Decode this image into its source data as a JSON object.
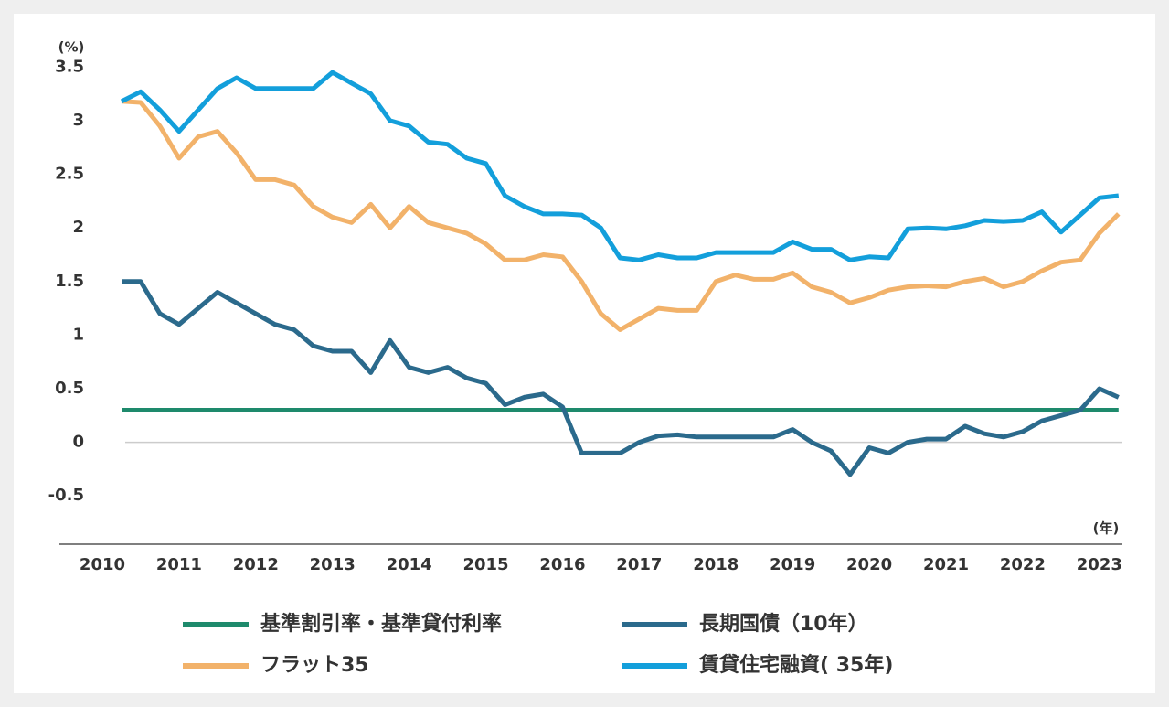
{
  "chart_data": {
    "type": "line",
    "y_label": "(%)",
    "x_label": "(年)",
    "xlim": [
      2009.44,
      2023.3
    ],
    "xticks": [
      2010,
      2011,
      2012,
      2013,
      2014,
      2015,
      2016,
      2017,
      2018,
      2019,
      2020,
      2021,
      2022,
      2023
    ],
    "ylim": [
      -0.95,
      3.75
    ],
    "yticks": [
      -0.5,
      0,
      0.5,
      1,
      1.5,
      2,
      2.5,
      3,
      3.5
    ],
    "x": [
      2010.25,
      2010.5,
      2010.75,
      2011,
      2011.25,
      2011.5,
      2011.75,
      2012,
      2012.25,
      2012.5,
      2012.75,
      2013,
      2013.25,
      2013.5,
      2013.75,
      2014,
      2014.25,
      2014.5,
      2014.75,
      2015,
      2015.25,
      2015.5,
      2015.75,
      2016,
      2016.25,
      2016.5,
      2016.75,
      2017,
      2017.25,
      2017.5,
      2017.75,
      2018,
      2018.25,
      2018.5,
      2018.75,
      2019,
      2019.25,
      2019.5,
      2019.75,
      2020,
      2020.25,
      2020.5,
      2020.75,
      2021,
      2021.25,
      2021.5,
      2021.75,
      2022,
      2022.25,
      2022.5,
      2022.75,
      2023,
      2023.25
    ],
    "series": [
      {
        "name": "基準割引率・基準貸付利率",
        "color": "#1e8a6c",
        "values": [
          0.3,
          0.3,
          0.3,
          0.3,
          0.3,
          0.3,
          0.3,
          0.3,
          0.3,
          0.3,
          0.3,
          0.3,
          0.3,
          0.3,
          0.3,
          0.3,
          0.3,
          0.3,
          0.3,
          0.3,
          0.3,
          0.3,
          0.3,
          0.3,
          0.3,
          0.3,
          0.3,
          0.3,
          0.3,
          0.3,
          0.3,
          0.3,
          0.3,
          0.3,
          0.3,
          0.3,
          0.3,
          0.3,
          0.3,
          0.3,
          0.3,
          0.3,
          0.3,
          0.3,
          0.3,
          0.3,
          0.3,
          0.3,
          0.3,
          0.3,
          0.3,
          0.3,
          0.3
        ]
      },
      {
        "name": "長期国債（10年）",
        "color": "#2b6a8c",
        "values": [
          1.5,
          1.5,
          1.2,
          1.1,
          1.25,
          1.4,
          1.3,
          1.2,
          1.1,
          1.05,
          0.9,
          0.85,
          0.85,
          0.65,
          0.95,
          0.7,
          0.65,
          0.7,
          0.6,
          0.55,
          0.35,
          0.42,
          0.45,
          0.33,
          -0.1,
          -0.1,
          -0.1,
          0.0,
          0.06,
          0.07,
          0.05,
          0.05,
          0.05,
          0.05,
          0.05,
          0.12,
          0.0,
          -0.08,
          -0.3,
          -0.05,
          -0.1,
          0.0,
          0.03,
          0.03,
          0.15,
          0.08,
          0.05,
          0.1,
          0.2,
          0.25,
          0.3,
          0.5,
          0.42
        ]
      },
      {
        "name": "フラット35",
        "color": "#f2b26a",
        "values": [
          3.18,
          3.17,
          2.95,
          2.65,
          2.85,
          2.9,
          2.7,
          2.45,
          2.45,
          2.4,
          2.2,
          2.1,
          2.05,
          2.22,
          2.0,
          2.2,
          2.05,
          2.0,
          1.95,
          1.85,
          1.7,
          1.7,
          1.75,
          1.73,
          1.5,
          1.2,
          1.05,
          1.15,
          1.25,
          1.23,
          1.23,
          1.5,
          1.56,
          1.52,
          1.52,
          1.58,
          1.45,
          1.4,
          1.3,
          1.35,
          1.42,
          1.45,
          1.46,
          1.45,
          1.5,
          1.53,
          1.45,
          1.5,
          1.6,
          1.68,
          1.7,
          1.95,
          2.13
        ]
      },
      {
        "name": "賃貸住宅融資( 35年)",
        "color": "#139fdb",
        "values": [
          3.18,
          3.27,
          3.1,
          2.9,
          3.1,
          3.3,
          3.4,
          3.3,
          3.3,
          3.3,
          3.3,
          3.45,
          3.35,
          3.25,
          3.0,
          2.95,
          2.8,
          2.78,
          2.65,
          2.6,
          2.3,
          2.2,
          2.13,
          2.13,
          2.12,
          2.0,
          1.72,
          1.7,
          1.75,
          1.72,
          1.72,
          1.77,
          1.77,
          1.77,
          1.77,
          1.87,
          1.8,
          1.8,
          1.7,
          1.73,
          1.72,
          1.99,
          2.0,
          1.99,
          2.02,
          2.07,
          2.06,
          2.07,
          2.15,
          1.96,
          2.12,
          2.28,
          2.3
        ]
      }
    ]
  }
}
